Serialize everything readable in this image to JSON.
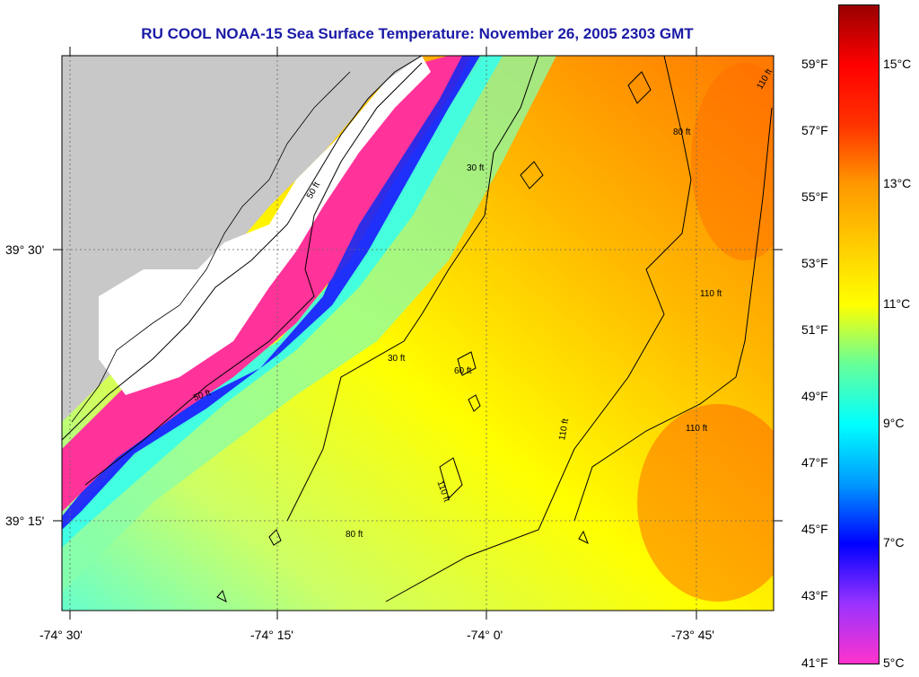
{
  "title": "RU COOL  NOAA-15  Sea Surface Temperature:  November 26, 2005 2303 GMT",
  "map": {
    "x_ticks": [
      "-74° 30'",
      "-74° 15'",
      "-74° 0'",
      "-73° 45'"
    ],
    "y_ticks": [
      "39° 30'",
      "39° 15'"
    ],
    "contour_labels": [
      "30 ft",
      "50 ft",
      "60 ft",
      "80 ft",
      "110 ft"
    ],
    "land_color": "#c8c8c8",
    "cloud_color": "#ffffff",
    "contour_color": "#000000"
  },
  "colorbar": {
    "fahrenheit_labels": [
      "59°F",
      "57°F",
      "55°F",
      "53°F",
      "51°F",
      "49°F",
      "47°F",
      "45°F",
      "43°F",
      "41°F"
    ],
    "celsius_labels": [
      "15°C",
      "13°C",
      "11°C",
      "9°C",
      "7°C",
      "5°C"
    ],
    "colors": [
      "#ff33cc",
      "#9933ff",
      "#0000ff",
      "#0099ff",
      "#00ffff",
      "#66ff99",
      "#ffff00",
      "#ffcc00",
      "#ff9900",
      "#ff3300",
      "#ff0000",
      "#990000"
    ]
  }
}
